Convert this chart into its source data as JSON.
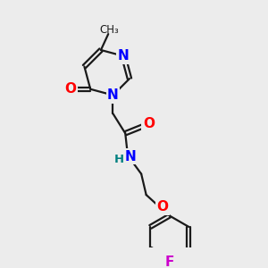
{
  "bg_color": "#ececec",
  "bond_color": "#1a1a1a",
  "atom_colors": {
    "N": "#0000ff",
    "O": "#ff0000",
    "F": "#cc00cc",
    "H_label": "#008080",
    "C": "#1a1a1a"
  },
  "font_size_atom": 11,
  "font_size_methyl": 10,
  "line_width": 1.6
}
